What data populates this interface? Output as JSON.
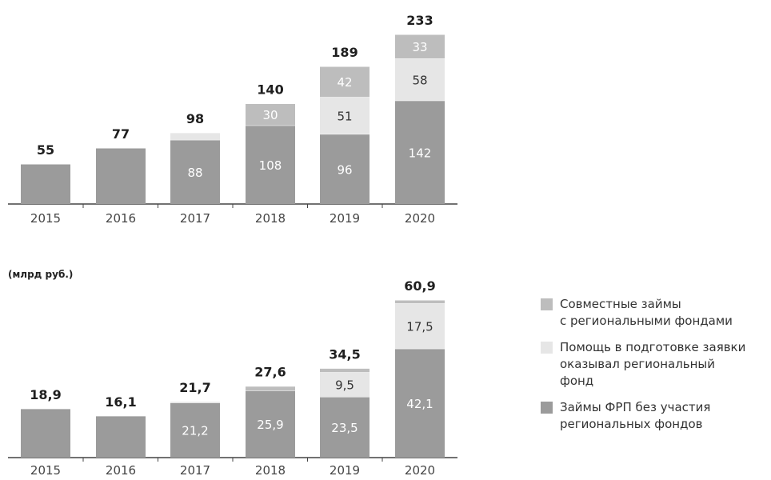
{
  "colors": {
    "joint": "#bdbdbd",
    "help": "#e6e6e6",
    "frp": "#9b9b9b",
    "axis": "#444444",
    "total_text": "#1f1f1f",
    "inner_dark_text": "#333333",
    "inner_light_text": "#ffffff",
    "tick_text": "#444444"
  },
  "unit_label": "(млрд руб.)",
  "legend": [
    {
      "key": "joint",
      "label": "Совместные займы\nс региональными фондами"
    },
    {
      "key": "help",
      "label": "Помощь в подготовке заявки\nоказывал региональный\nфонд"
    },
    {
      "key": "frp",
      "label": "Займы ФРП без участия\nрегиональных фондов"
    }
  ],
  "chart_data": [
    {
      "type": "bar",
      "stacked": true,
      "categories": [
        "2015",
        "2016",
        "2017",
        "2018",
        "2019",
        "2020"
      ],
      "totals": [
        55,
        77,
        98,
        140,
        189,
        233
      ],
      "total_labels": [
        "55",
        "77",
        "98",
        "140",
        "189",
        "233"
      ],
      "ylim": [
        0,
        233
      ],
      "series": [
        {
          "key": "frp",
          "values": [
            55,
            77,
            88,
            108,
            96,
            142
          ],
          "labels": [
            "",
            "",
            "88",
            "108",
            "96",
            "142"
          ]
        },
        {
          "key": "help",
          "values": [
            0,
            0,
            10,
            0,
            51,
            58
          ],
          "labels": [
            "",
            "",
            "",
            "",
            "51",
            "58"
          ]
        },
        {
          "key": "joint",
          "values": [
            0,
            0,
            0,
            30,
            42,
            33
          ],
          "labels": [
            "",
            "",
            "",
            "30",
            "42",
            "33"
          ]
        }
      ]
    },
    {
      "type": "bar",
      "stacked": true,
      "categories": [
        "2015",
        "2016",
        "2017",
        "2018",
        "2019",
        "2020"
      ],
      "totals": [
        18.9,
        16.1,
        21.7,
        27.6,
        34.5,
        60.9
      ],
      "total_labels": [
        "18,9",
        "16,1",
        "21,7",
        "27,6",
        "34,5",
        "60,9"
      ],
      "ylim": [
        0,
        60.9
      ],
      "series": [
        {
          "key": "frp",
          "values": [
            18.9,
            16.1,
            21.2,
            25.9,
            23.5,
            42.1
          ],
          "labels": [
            "",
            "",
            "21,2",
            "25,9",
            "23,5",
            "42,1"
          ]
        },
        {
          "key": "help",
          "values": [
            0,
            0,
            0.5,
            0,
            9.5,
            17.5
          ],
          "labels": [
            "",
            "",
            "",
            "",
            "9,5",
            "17,5"
          ]
        },
        {
          "key": "joint",
          "values": [
            0,
            0,
            0,
            1.7,
            1.5,
            1.3
          ],
          "labels": [
            "",
            "",
            "",
            "",
            "",
            ""
          ]
        }
      ]
    }
  ]
}
